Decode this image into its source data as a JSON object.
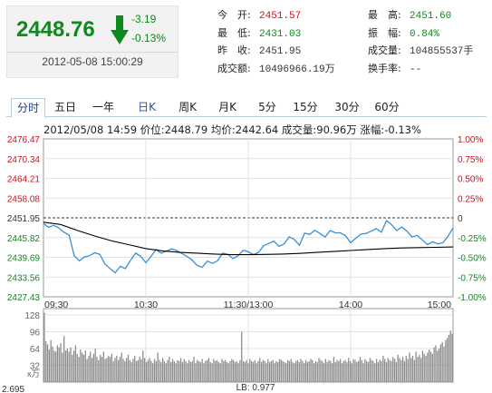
{
  "quote": {
    "price": "2448.76",
    "change": "-3.19",
    "change_pct": "-0.13%",
    "datetime": "2012-05-08 15:00:29",
    "direction_icon": "down-arrow-icon",
    "color_down": "#0d8a1c"
  },
  "stats": {
    "col1": [
      {
        "label": "今　开:",
        "value": "2451.57",
        "tone": "red"
      },
      {
        "label": "最　低:",
        "value": "2431.03",
        "tone": "green"
      },
      {
        "label": "昨　收:",
        "value": "2451.95",
        "tone": "plain"
      },
      {
        "label": "成交额:",
        "value": "10496966.19万",
        "tone": "plain"
      }
    ],
    "col2": [
      {
        "label": "最　高:",
        "value": "2451.60",
        "tone": "green"
      },
      {
        "label": "振　幅:",
        "value": "0.84%",
        "tone": "green"
      },
      {
        "label": "成交量:",
        "value": "104855537手",
        "tone": "plain"
      },
      {
        "label": "换手率:",
        "value": "--",
        "tone": "plain"
      }
    ]
  },
  "tabs": [
    {
      "label": "分时",
      "active": true
    },
    {
      "label": "五日",
      "active": false
    },
    {
      "label": "一年",
      "active": false
    },
    {
      "label": "日K",
      "active": false
    },
    {
      "label": "周K",
      "active": false
    },
    {
      "label": "月K",
      "active": false
    },
    {
      "label": "5分",
      "active": false
    },
    {
      "label": "15分",
      "active": false
    },
    {
      "label": "30分",
      "active": false
    },
    {
      "label": "60分",
      "active": false
    }
  ],
  "infobar": "2012/05/08 14:59  价位:2448.79  均价:2442.64  成交量:90.96万  涨幅:-0.13%",
  "chart_data": {
    "type": "line",
    "title": "",
    "prev_close": 2451.95,
    "y_left_ticks": [
      "2476.47",
      "2470.34",
      "2464.21",
      "2458.08",
      "2451.95",
      "2445.82",
      "2439.69",
      "2433.56",
      "2427.43"
    ],
    "y_right_ticks": [
      "1.00%",
      "0.75%",
      "0.50%",
      "0.25%",
      "0",
      "-0.25%",
      "-0.50%",
      "-0.75%",
      "-1.00%"
    ],
    "ylim": [
      2427.43,
      2476.47
    ],
    "x_ticks": [
      "09:30",
      "10:30",
      "11:30/13:00",
      "14:00",
      "15:00"
    ],
    "series": [
      {
        "name": "价位",
        "color": "#3a8fd6",
        "x": [
          0,
          3,
          6,
          9,
          12,
          15,
          18,
          21,
          24,
          27,
          30,
          33,
          36,
          39,
          42,
          45,
          48,
          51,
          54,
          57,
          60,
          63,
          66,
          69,
          72,
          75,
          78,
          81,
          84,
          87,
          90,
          93,
          96,
          99,
          102,
          105,
          108,
          111,
          114,
          117,
          120,
          123,
          126,
          129,
          132,
          135,
          138,
          141,
          144,
          147,
          150,
          153,
          156,
          159,
          162,
          165,
          168,
          171,
          174,
          177,
          180,
          183,
          186,
          189,
          192,
          195,
          198,
          201,
          204,
          207,
          210,
          213,
          216,
          219,
          222,
          225,
          228,
          231,
          234,
          237,
          240
        ],
        "values": [
          2450.2,
          2449.0,
          2449.6,
          2448.8,
          2447.5,
          2446.6,
          2440.2,
          2438.6,
          2439.8,
          2440.2,
          2441.1,
          2440.6,
          2437.6,
          2436.2,
          2434.9,
          2436.9,
          2436.2,
          2438.8,
          2441.0,
          2440.0,
          2438.0,
          2440.0,
          2442.1,
          2441.0,
          2441.6,
          2442.3,
          2441.8,
          2440.9,
          2440.0,
          2438.9,
          2437.2,
          2436.6,
          2438.5,
          2437.8,
          2438.6,
          2441.0,
          2440.6,
          2439.3,
          2440.1,
          2441.9,
          2441.4,
          2440.5,
          2441.2,
          2443.3,
          2444.0,
          2444.7,
          2443.1,
          2443.9,
          2446.1,
          2445.2,
          2443.4,
          2447.2,
          2446.8,
          2448.1,
          2447.1,
          2446.0,
          2448.0,
          2447.3,
          2447.3,
          2446.4,
          2444.2,
          2445.6,
          2446.9,
          2447.1,
          2447.8,
          2448.6,
          2447.5,
          2451.1,
          2449.8,
          2448.0,
          2449.1,
          2447.8,
          2446.0,
          2446.5,
          2445.1,
          2443.6,
          2444.5,
          2443.9,
          2444.2,
          2446.2,
          2448.8
        ]
      },
      {
        "name": "均价",
        "color": "#000000",
        "x": [
          0,
          10,
          20,
          30,
          40,
          50,
          60,
          70,
          80,
          90,
          100,
          110,
          120,
          130,
          140,
          150,
          160,
          170,
          180,
          190,
          200,
          210,
          220,
          230,
          240
        ],
        "values": [
          2450.6,
          2449.9,
          2448.0,
          2446.3,
          2444.8,
          2443.6,
          2442.4,
          2441.7,
          2441.2,
          2441.0,
          2440.7,
          2440.5,
          2440.5,
          2440.6,
          2440.7,
          2440.9,
          2441.2,
          2441.5,
          2441.8,
          2442.1,
          2442.4,
          2442.6,
          2442.7,
          2442.8,
          2442.9
        ]
      }
    ],
    "volume": {
      "y_ticks": [
        "128",
        "96",
        "64",
        "32"
      ],
      "unit": "x万",
      "ylim": [
        0,
        140
      ],
      "bottom_left": "2.695",
      "lb_label": "LB: 0.977",
      "values": [
        132,
        78,
        72,
        62,
        80,
        68,
        60,
        58,
        70,
        66,
        74,
        56,
        88,
        60,
        64,
        58,
        66,
        52,
        60,
        70,
        54,
        48,
        62,
        56,
        52,
        60,
        44,
        50,
        58,
        46,
        54,
        64,
        48,
        42,
        52,
        48,
        58,
        44,
        46,
        50,
        48,
        54,
        40,
        46,
        50,
        42,
        48,
        56,
        44,
        40,
        46,
        52,
        42,
        38,
        44,
        50,
        40,
        42,
        48,
        44,
        60,
        46,
        38,
        42,
        46,
        40,
        36,
        44,
        40,
        56,
        42,
        38,
        46,
        40,
        36,
        42,
        48,
        38,
        44,
        40,
        36,
        42,
        40,
        46,
        38,
        44,
        40,
        36,
        42,
        38,
        40,
        48,
        36,
        42,
        40,
        38,
        44,
        36,
        40,
        42,
        46,
        38,
        36,
        44,
        40,
        42,
        38,
        36,
        44,
        40,
        42,
        38,
        36,
        40,
        44,
        42,
        38,
        40,
        36,
        42,
        96,
        40,
        38,
        42,
        36,
        44,
        40,
        38,
        42,
        36,
        40,
        46,
        38,
        42,
        40,
        36,
        44,
        38,
        40,
        42,
        36,
        40,
        38,
        44,
        42,
        40,
        38,
        36,
        42,
        40,
        44,
        38,
        36,
        40,
        42,
        38,
        44,
        40,
        36,
        42,
        38,
        40,
        44,
        42,
        36,
        40,
        38,
        46,
        42,
        40,
        36,
        44,
        38,
        42,
        40,
        36,
        48,
        38,
        42,
        40,
        44,
        36,
        40,
        42,
        38,
        46,
        40,
        36,
        44,
        42,
        38,
        40,
        48,
        42,
        36,
        44,
        40,
        38,
        46,
        42,
        40,
        36,
        44,
        38,
        42,
        40,
        50,
        44,
        38,
        46,
        42,
        40,
        48,
        44,
        38,
        52,
        46,
        42,
        48,
        40,
        50,
        44,
        56,
        46,
        50,
        42,
        58,
        48,
        52,
        46,
        60,
        54,
        50,
        56,
        62,
        58,
        54,
        66,
        70,
        60,
        64,
        72,
        76,
        68,
        80,
        84,
        90,
        98,
        92
      ]
    }
  }
}
